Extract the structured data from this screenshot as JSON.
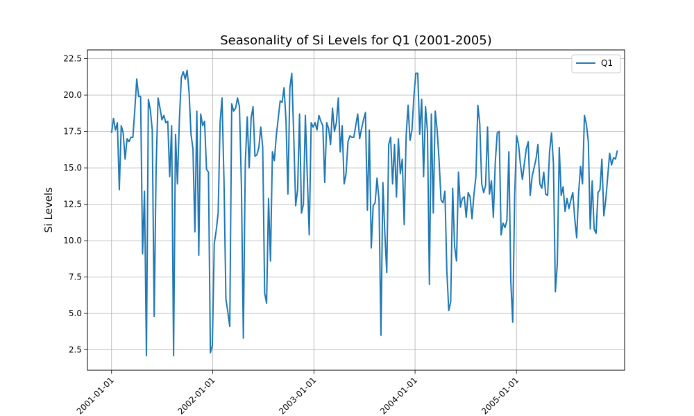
{
  "chart_data": {
    "type": "line",
    "title": "Seasonality of Si Levels for Q1 (2001-2005)",
    "xlabel": "",
    "ylabel": "Si Levels",
    "x_start": "2001-01-01",
    "x_end": "2005-12-31",
    "xlim": [
      "2000-10-06",
      "2006-01-26"
    ],
    "ylim": [
      1.1,
      23.1
    ],
    "x_ticks": [
      "2001-01-01",
      "2002-01-01",
      "2003-01-01",
      "2004-01-01",
      "2005-01-01"
    ],
    "y_ticks": [
      2.5,
      5.0,
      7.5,
      10.0,
      12.5,
      15.0,
      17.5,
      20.0,
      22.5
    ],
    "y_tick_labels": [
      "2.5",
      "5.0",
      "7.5",
      "10.0",
      "12.5",
      "15.0",
      "17.5",
      "20.0",
      "22.5"
    ],
    "grid": true,
    "legend_position": "upper-right",
    "series": [
      {
        "name": "Q1",
        "color": "#1f77b4",
        "values": [
          17.4,
          18.4,
          17.6,
          18.1,
          13.5,
          17.9,
          17.4,
          15.6,
          17.0,
          16.8,
          17.1,
          17.1,
          19.0,
          21.1,
          19.9,
          19.9,
          9.1,
          13.4,
          2.1,
          19.7,
          19.0,
          17.6,
          4.8,
          15.0,
          19.8,
          19.1,
          18.3,
          18.6,
          18.1,
          18.2,
          14.4,
          17.9,
          2.1,
          17.3,
          13.9,
          18.3,
          21.2,
          21.6,
          21.1,
          21.7,
          20.2,
          17.3,
          16.3,
          10.6,
          18.9,
          9.0,
          18.7,
          17.9,
          18.2,
          14.9,
          14.7,
          2.3,
          2.8,
          9.8,
          10.7,
          11.9,
          18.1,
          19.8,
          14.2,
          6.0,
          5.1,
          4.1,
          19.4,
          18.9,
          19.1,
          19.8,
          19.2,
          13.8,
          3.3,
          15.3,
          18.5,
          15.0,
          18.4,
          19.2,
          15.8,
          15.9,
          16.4,
          17.8,
          16.4,
          6.4,
          5.7,
          12.9,
          8.6,
          16.1,
          15.5,
          17.2,
          18.4,
          19.6,
          19.5,
          20.5,
          18.3,
          13.2,
          20.5,
          21.5,
          17.2,
          12.4,
          13.5,
          18.7,
          11.9,
          12.5,
          18.6,
          14.4,
          10.4,
          18.1,
          17.8,
          18.1,
          17.6,
          18.6,
          18.2,
          17.9,
          14.0,
          18.1,
          17.7,
          16.6,
          19.1,
          17.5,
          18.1,
          19.8,
          16.1,
          17.9,
          13.9,
          14.6,
          16.8,
          17.2,
          17.1,
          17.1,
          17.9,
          18.7,
          17.0,
          17.7,
          18.3,
          18.8,
          12.1,
          17.6,
          9.5,
          12.4,
          12.6,
          14.3,
          12.8,
          3.5,
          14.0,
          10.5,
          7.8,
          16.6,
          17.1,
          13.9,
          16.6,
          13.0,
          17.0,
          14.6,
          15.6,
          11.1,
          17.2,
          19.3,
          16.9,
          17.6,
          19.9,
          21.5,
          21.5,
          17.3,
          19.7,
          14.4,
          19.2,
          17.5,
          7.0,
          18.7,
          11.9,
          18.9,
          17.6,
          15.5,
          12.8,
          12.6,
          13.4,
          7.9,
          5.2,
          5.8,
          13.6,
          9.6,
          8.6,
          14.7,
          12.3,
          12.9,
          13.0,
          11.6,
          13.3,
          13.0,
          11.5,
          13.2,
          14.4,
          19.3,
          18.0,
          13.9,
          13.3,
          13.8,
          17.8,
          13.2,
          14.1,
          11.6,
          15.4,
          17.4,
          17.5,
          10.4,
          11.2,
          10.9,
          11.4,
          16.1,
          7.2,
          4.4,
          13.1,
          17.2,
          16.6,
          15.2,
          14.2,
          15.3,
          16.3,
          16.8,
          13.1,
          14.4,
          15.0,
          15.6,
          16.6,
          13.9,
          13.6,
          14.7,
          13.2,
          13.1,
          16.1,
          17.4,
          15.3,
          6.5,
          8.4,
          16.4,
          13.1,
          13.7,
          12.0,
          12.9,
          12.2,
          12.8,
          13.3,
          11.5,
          10.2,
          13.3,
          15.1,
          13.9,
          18.6,
          18.0,
          16.8,
          10.8,
          14.1,
          10.8,
          10.5,
          13.3,
          13.5,
          15.6,
          11.7,
          12.8,
          14.4,
          16.0,
          15.2,
          15.7,
          15.6,
          16.2
        ]
      }
    ]
  }
}
